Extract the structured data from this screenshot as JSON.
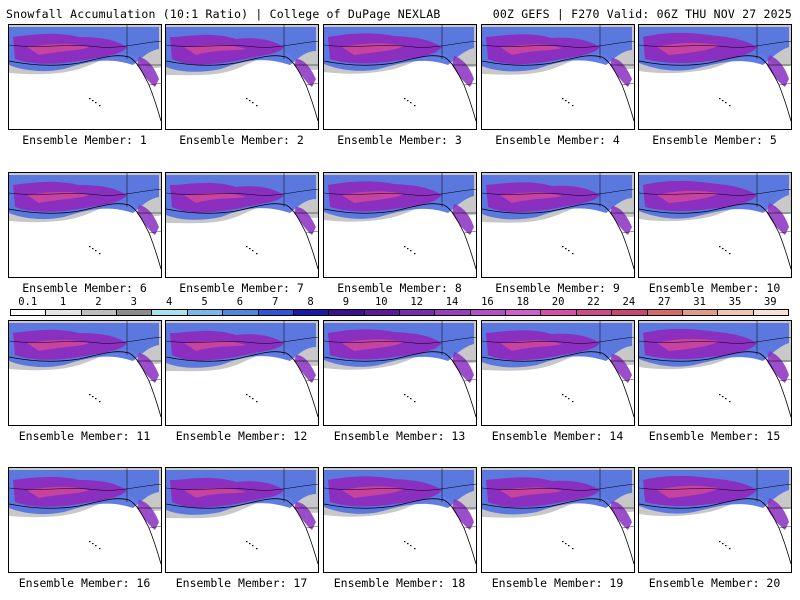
{
  "header": {
    "title_left": "Snowfall Accumulation (10:1 Ratio) | College of DuPage NEXLAB",
    "title_right": "00Z GEFS | F270 Valid: 06Z THU NOV 27 2025"
  },
  "panels": [
    {
      "member": 1,
      "label": "Ensemble Member: 1"
    },
    {
      "member": 2,
      "label": "Ensemble Member: 2"
    },
    {
      "member": 3,
      "label": "Ensemble Member: 3"
    },
    {
      "member": 4,
      "label": "Ensemble Member: 4"
    },
    {
      "member": 5,
      "label": "Ensemble Member: 5"
    },
    {
      "member": 6,
      "label": "Ensemble Member: 6"
    },
    {
      "member": 7,
      "label": "Ensemble Member: 7"
    },
    {
      "member": 8,
      "label": "Ensemble Member: 8"
    },
    {
      "member": 9,
      "label": "Ensemble Member: 9"
    },
    {
      "member": 10,
      "label": "Ensemble Member: 10"
    },
    {
      "member": 11,
      "label": "Ensemble Member: 11"
    },
    {
      "member": 12,
      "label": "Ensemble Member: 12"
    },
    {
      "member": 13,
      "label": "Ensemble Member: 13"
    },
    {
      "member": 14,
      "label": "Ensemble Member: 14"
    },
    {
      "member": 15,
      "label": "Ensemble Member: 15"
    },
    {
      "member": 16,
      "label": "Ensemble Member: 16"
    },
    {
      "member": 17,
      "label": "Ensemble Member: 17"
    },
    {
      "member": 18,
      "label": "Ensemble Member: 18"
    },
    {
      "member": 19,
      "label": "Ensemble Member: 19"
    },
    {
      "member": 20,
      "label": "Ensemble Member: 20"
    }
  ],
  "colorbar": {
    "labels": [
      "0.1",
      "1",
      "2",
      "3",
      "4",
      "5",
      "6",
      "7",
      "8",
      "9",
      "10",
      "12",
      "14",
      "16",
      "18",
      "20",
      "22",
      "24",
      "27",
      "31",
      "35",
      "39"
    ],
    "colors": [
      "#ffffff",
      "#e6e6e6",
      "#bdbdbd",
      "#8c8c8c",
      "#a6e3ef",
      "#79b8ea",
      "#4f88e0",
      "#2f55d6",
      "#1a1aa8",
      "#3b0f8f",
      "#5b1a9e",
      "#7b2bb0",
      "#9a3ec0",
      "#b54fc9",
      "#cf5fcf",
      "#d74fa8",
      "#d04a8a",
      "#c84670",
      "#d66a6a",
      "#e29a8a",
      "#efc4b2",
      "#f7e3d4"
    ]
  },
  "map_colors": {
    "ocean": "#ffffff",
    "coast": "#000000",
    "light_snow": "#c8c8c8",
    "moderate": "#4f6fe0",
    "heavy": "#8a2fc0",
    "extreme": "#d0479a"
  }
}
